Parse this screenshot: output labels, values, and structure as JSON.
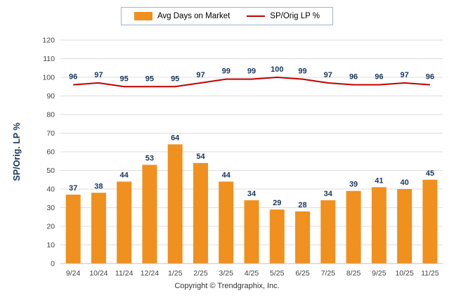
{
  "chart_data": {
    "type": "bar",
    "subtype": "bar+line combo",
    "categories": [
      "9/24",
      "10/24",
      "11/24",
      "12/24",
      "1/25",
      "2/25",
      "3/25",
      "4/25",
      "5/25",
      "6/25",
      "7/25",
      "8/25",
      "9/25",
      "10/25",
      "11/25"
    ],
    "series": [
      {
        "name": "Avg Days on Market",
        "type": "bar",
        "color": "#F0901E",
        "values": [
          37,
          38,
          44,
          53,
          64,
          54,
          44,
          34,
          29,
          28,
          34,
          39,
          41,
          40,
          45
        ]
      },
      {
        "name": "SP/Orig LP %",
        "type": "line",
        "color": "#C00000",
        "values": [
          96,
          97,
          95,
          95,
          95,
          97,
          99,
          99,
          100,
          99,
          97,
          96,
          96,
          97,
          96
        ]
      }
    ],
    "title": "",
    "xlabel": "",
    "ylabel": "SP/Orig. LP %",
    "ylim": [
      0,
      120
    ],
    "ytick_step": 10,
    "grid": true,
    "legend_position": "top",
    "label_color": "#17375E",
    "axis_text_color": "#404040",
    "grid_color": "#DCDCDC"
  },
  "footer": {
    "copyright": "Copyright © Trendgraphix, Inc."
  }
}
